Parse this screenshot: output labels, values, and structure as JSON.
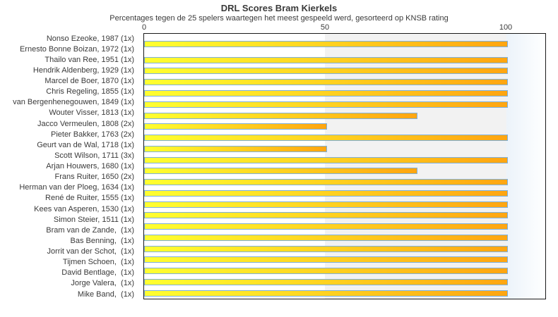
{
  "chart": {
    "title": "DRL Scores Bram Kierkels",
    "subtitle": "Percentages tegen de 25 spelers waartegen het meest gespeeld werd, gesorteerd op KNSB rating",
    "x_tick_labels": [
      "0",
      "50",
      "100"
    ]
  },
  "chart_data": {
    "type": "bar",
    "orientation": "horizontal",
    "title": "DRL Scores Bram Kierkels",
    "subtitle": "Percentages tegen de 25 spelers waartegen het meest gespeeld werd, gesorteerd op KNSB rating",
    "xlabel": "",
    "ylabel": "",
    "xlim": [
      0,
      110
    ],
    "x_ticks": [
      0,
      50,
      100
    ],
    "grid": false,
    "legend": false,
    "categories": [
      "Nonso Ezeoke, 1987 (1x)",
      "Ernesto Bonne Boizan, 1972 (1x)",
      "Thailo van Ree, 1951 (1x)",
      "Hendrik Aldenberg, 1929 (1x)",
      "Marcel de Boer, 1870 (1x)",
      "Chris Regeling, 1855 (1x)",
      "van Bergenhenegouwen, 1849 (1x)",
      "Wouter Visser, 1813 (1x)",
      "Jacco Vermeulen, 1808 (2x)",
      "Pieter Bakker, 1763 (2x)",
      "Geurt van de Wal, 1718 (1x)",
      "Scott Wilson, 1711 (3x)",
      "Arjan Houwers, 1680 (1x)",
      "Frans Ruiter, 1650 (2x)",
      "Herman van der Ploeg, 1634 (1x)",
      "René de Ruiter, 1555 (1x)",
      "Kees van Asperen, 1530 (1x)",
      "Simon Steier, 1511 (1x)",
      "Bram van de Zande,  (1x)",
      "Bas Benning,  (1x)",
      "Jorrit van der Schot,  (1x)",
      "Tijmen Schoen,  (1x)",
      "David Bentlage,  (1x)",
      "Jorge Valera,  (1x)",
      "Mike Band,  (1x)"
    ],
    "values": [
      0,
      100,
      0,
      100,
      100,
      100,
      100,
      100,
      75,
      50,
      100,
      50,
      100,
      75,
      100,
      100,
      100,
      100,
      100,
      100,
      100,
      100,
      100,
      100,
      100
    ],
    "background_bands": [
      {
        "range": [
          0,
          50
        ],
        "color": "#ffffff"
      },
      {
        "range": [
          50,
          100
        ],
        "color": "#f2f2f2"
      },
      {
        "range": [
          100,
          110
        ],
        "color_gradient": [
          "#ecf3fa",
          "#feffff"
        ]
      }
    ],
    "bar_style": {
      "fill_gradient": [
        "#ffff30",
        "#ffa511"
      ],
      "border_color": "#7db0dd"
    }
  }
}
